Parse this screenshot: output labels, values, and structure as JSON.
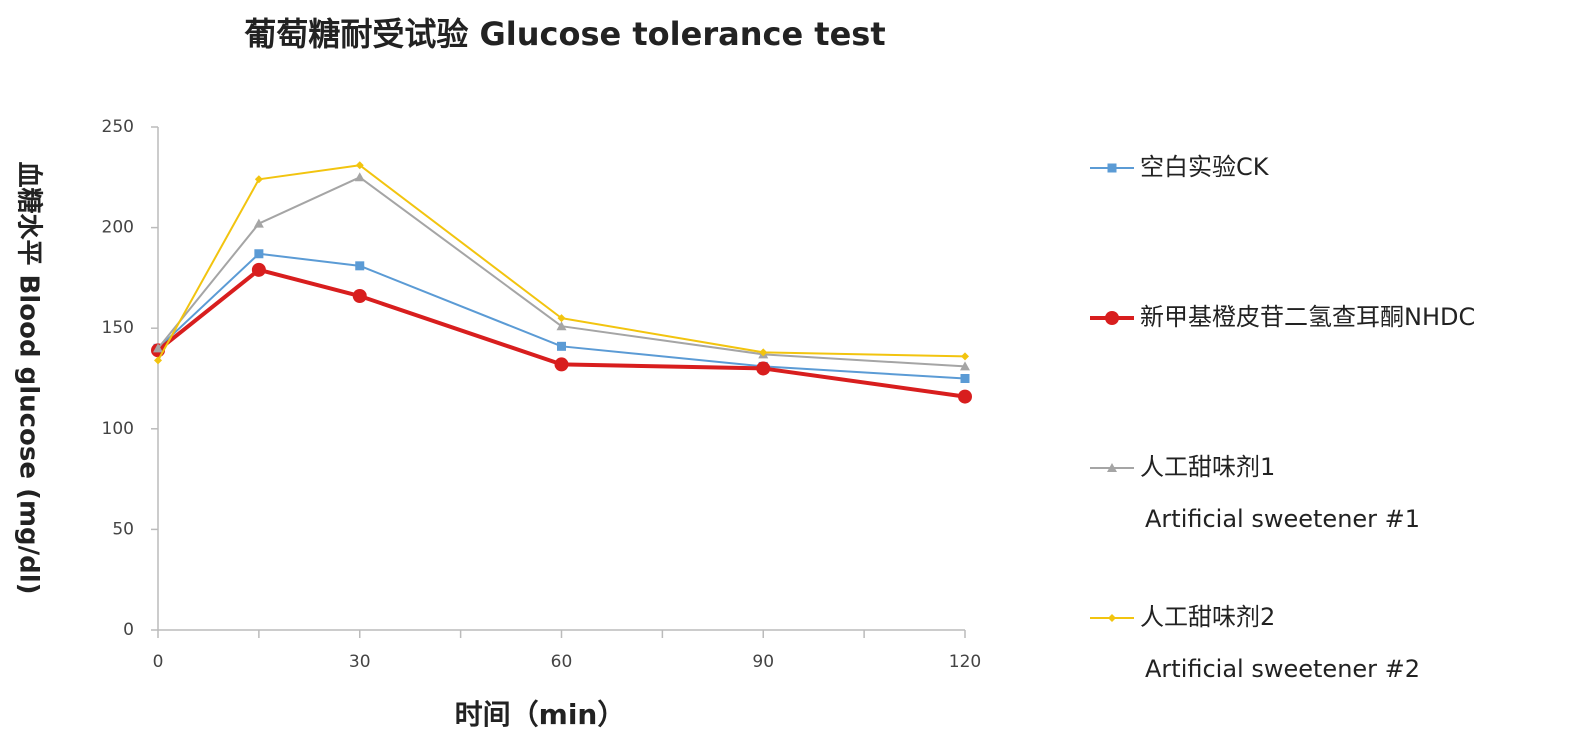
{
  "chart_data": {
    "type": "line",
    "title": "葡萄糖耐受试验  Glucose tolerance test",
    "x_label": "时间（min）",
    "y_label": "血糖水平 Blood glucose (mg/dl)",
    "x": [
      0,
      15,
      30,
      60,
      90,
      120
    ],
    "xlim": [
      0,
      120
    ],
    "xticks": [
      0,
      30,
      60,
      90,
      120
    ],
    "xminor_ticks": [
      15,
      45,
      75,
      105
    ],
    "ylim": [
      0,
      250
    ],
    "yticks": [
      0,
      50,
      100,
      150,
      200,
      250
    ],
    "grid": false,
    "legend": "right",
    "series": [
      {
        "name": "空白实验CK",
        "color": "#5b9bd5",
        "marker": "square",
        "width": 2,
        "values": [
          140,
          187,
          181,
          141,
          131,
          125
        ]
      },
      {
        "name": "新甲基橙皮苷二氢查耳酮NHDC",
        "color": "#d81e1e",
        "marker": "circle",
        "width": 4,
        "values": [
          139,
          179,
          166,
          132,
          130,
          116
        ]
      },
      {
        "name": "人工甜味剂1",
        "name_line2": "Artificial sweetener #1",
        "color": "#a5a5a5",
        "marker": "triangle",
        "width": 2,
        "values": [
          140,
          202,
          225,
          151,
          137,
          131
        ]
      },
      {
        "name": "人工甜味剂2",
        "name_line2": "Artificial sweetener #2",
        "color": "#f2c40f",
        "marker": "diamond",
        "width": 2,
        "values": [
          134,
          224,
          231,
          155,
          138,
          136
        ]
      }
    ]
  }
}
